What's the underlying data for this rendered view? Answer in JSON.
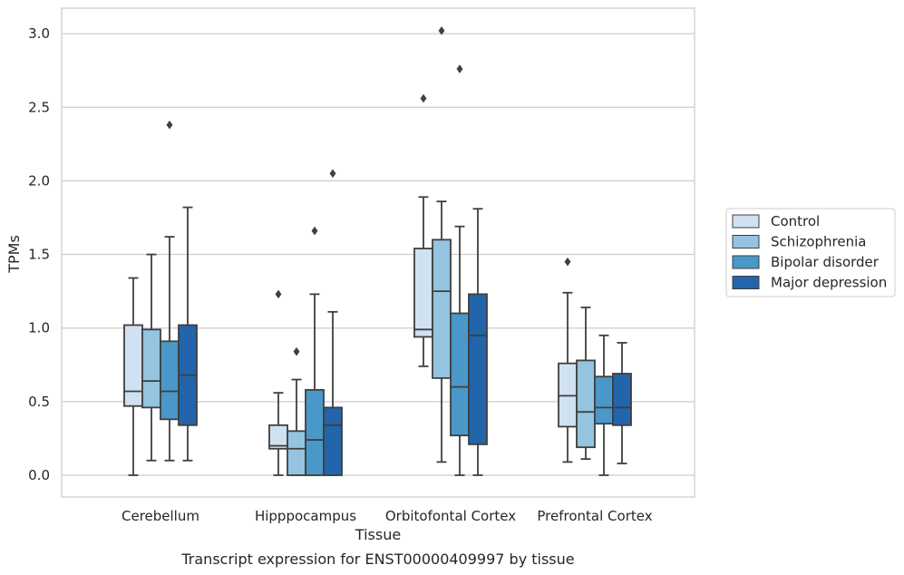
{
  "chart_data": {
    "type": "box",
    "title": "",
    "xlabel": "Tissue",
    "ylabel": "TPMs",
    "caption": "Transcript expression for ENST00000409997 by tissue",
    "categories": [
      "Cerebellum",
      "Hipppocampus",
      "Orbitofontal Cortex",
      "Prefrontal Cortex"
    ],
    "ylim": [
      -0.15,
      3.18
    ],
    "yticks": [
      0.0,
      0.5,
      1.0,
      1.5,
      2.0,
      2.5,
      3.0
    ],
    "ytick_labels": [
      "0.0",
      "0.5",
      "1.0",
      "1.5",
      "2.0",
      "2.5",
      "3.0"
    ],
    "grid": "horizontal",
    "legend_position": "right",
    "series": [
      {
        "name": "Control",
        "color": "#d0e1f2",
        "boxes": [
          {
            "whisker_low": 0.0,
            "q1": 0.47,
            "median": 0.57,
            "q3": 1.02,
            "whisker_high": 1.34,
            "outliers": []
          },
          {
            "whisker_low": 0.0,
            "q1": 0.18,
            "median": 0.2,
            "q3": 0.34,
            "whisker_high": 0.56,
            "outliers": [
              1.23
            ]
          },
          {
            "whisker_low": 0.74,
            "q1": 0.94,
            "median": 0.99,
            "q3": 1.54,
            "whisker_high": 1.89,
            "outliers": [
              2.56
            ]
          },
          {
            "whisker_low": 0.09,
            "q1": 0.33,
            "median": 0.54,
            "q3": 0.76,
            "whisker_high": 1.24,
            "outliers": [
              1.45
            ]
          }
        ]
      },
      {
        "name": "Schizophrenia",
        "color": "#94c4df",
        "boxes": [
          {
            "whisker_low": 0.1,
            "q1": 0.46,
            "median": 0.64,
            "q3": 0.99,
            "whisker_high": 1.5,
            "outliers": []
          },
          {
            "whisker_low": 0.0,
            "q1": 0.0,
            "median": 0.18,
            "q3": 0.3,
            "whisker_high": 0.65,
            "outliers": [
              0.84
            ]
          },
          {
            "whisker_low": 0.09,
            "q1": 0.66,
            "median": 1.25,
            "q3": 1.6,
            "whisker_high": 1.86,
            "outliers": [
              3.02
            ]
          },
          {
            "whisker_low": 0.11,
            "q1": 0.19,
            "median": 0.43,
            "q3": 0.78,
            "whisker_high": 1.14,
            "outliers": []
          }
        ]
      },
      {
        "name": "Bipolar disorder",
        "color": "#4a98c9",
        "boxes": [
          {
            "whisker_low": 0.1,
            "q1": 0.38,
            "median": 0.57,
            "q3": 0.91,
            "whisker_high": 1.62,
            "outliers": [
              2.38
            ]
          },
          {
            "whisker_low": 0.0,
            "q1": 0.0,
            "median": 0.24,
            "q3": 0.58,
            "whisker_high": 1.23,
            "outliers": [
              1.66
            ]
          },
          {
            "whisker_low": 0.0,
            "q1": 0.27,
            "median": 0.6,
            "q3": 1.1,
            "whisker_high": 1.69,
            "outliers": [
              2.76
            ]
          },
          {
            "whisker_low": 0.0,
            "q1": 0.35,
            "median": 0.46,
            "q3": 0.67,
            "whisker_high": 0.95,
            "outliers": []
          }
        ]
      },
      {
        "name": "Major depression",
        "color": "#2265ab",
        "boxes": [
          {
            "whisker_low": 0.1,
            "q1": 0.34,
            "median": 0.68,
            "q3": 1.02,
            "whisker_high": 1.82,
            "outliers": []
          },
          {
            "whisker_low": 0.0,
            "q1": 0.0,
            "median": 0.34,
            "q3": 0.46,
            "whisker_high": 1.11,
            "outliers": [
              2.05
            ]
          },
          {
            "whisker_low": 0.0,
            "q1": 0.21,
            "median": 0.95,
            "q3": 1.23,
            "whisker_high": 1.81,
            "outliers": []
          },
          {
            "whisker_low": 0.08,
            "q1": 0.34,
            "median": 0.46,
            "q3": 0.69,
            "whisker_high": 0.9,
            "outliers": []
          }
        ]
      }
    ]
  }
}
